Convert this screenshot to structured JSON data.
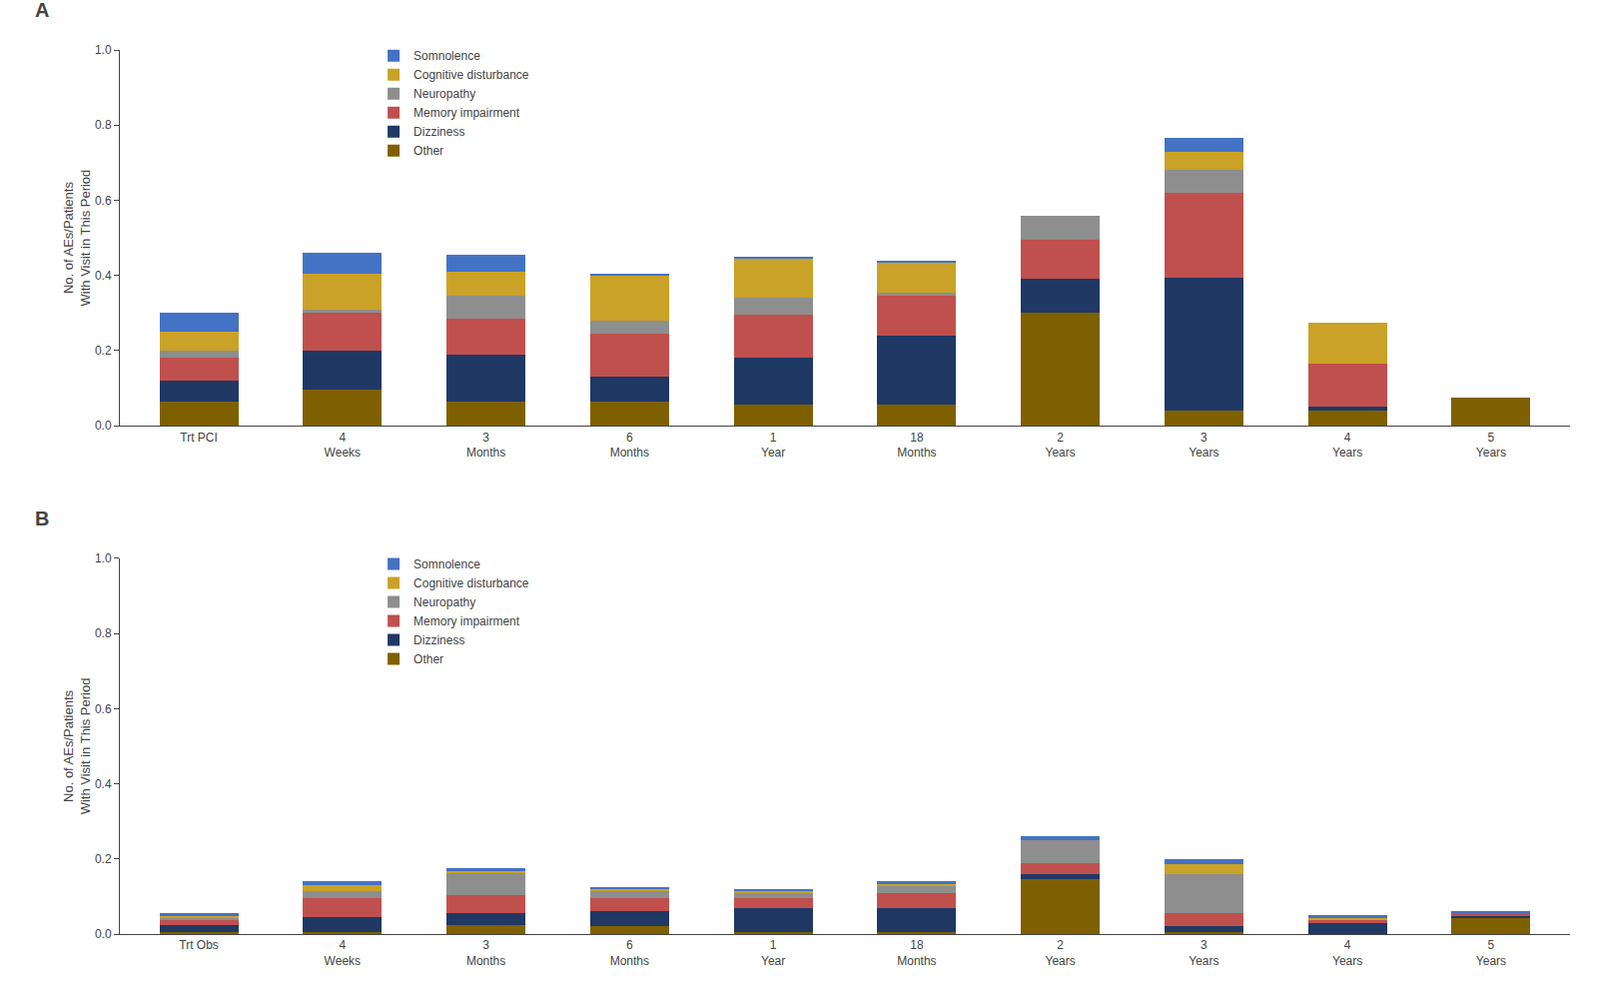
{
  "chart_data": [
    {
      "type": "bar",
      "title": "A",
      "stacked": true,
      "grid": false,
      "legend": "upper left",
      "categories": [
        "Trt PCI",
        "4\nWeeks",
        "3\nMonths",
        "6\nMonths",
        "1\nYear",
        "18\nMonths",
        "2\nYears",
        "3\nYears",
        "4\nYears",
        "5\nYears"
      ],
      "series": [
        {
          "name": "Other",
          "color": "#7F6000",
          "values": [
            0.065,
            0.095,
            0.065,
            0.065,
            0.055,
            0.055,
            0.3,
            0.04,
            0.04,
            0.075
          ]
        },
        {
          "name": "Dizziness",
          "color": "#1F3864",
          "values": [
            0.055,
            0.105,
            0.125,
            0.065,
            0.125,
            0.185,
            0.09,
            0.355,
            0.01,
            0.0
          ]
        },
        {
          "name": "Memory impairment",
          "color": "#C0504D",
          "values": [
            0.06,
            0.1,
            0.095,
            0.115,
            0.115,
            0.105,
            0.105,
            0.225,
            0.115,
            0.0
          ]
        },
        {
          "name": "Neuropathy",
          "color": "#8E8E8E",
          "values": [
            0.02,
            0.01,
            0.06,
            0.035,
            0.045,
            0.01,
            0.065,
            0.06,
            0.0,
            0.0
          ]
        },
        {
          "name": "Cognitive disturbance",
          "color": "#C9A227",
          "values": [
            0.05,
            0.095,
            0.065,
            0.12,
            0.105,
            0.08,
            0.0,
            0.05,
            0.11,
            0.0
          ]
        },
        {
          "name": "Somnolence",
          "color": "#4472C4",
          "values": [
            0.05,
            0.055,
            0.045,
            0.005,
            0.005,
            0.005,
            0.0,
            0.035,
            0.0,
            0.0
          ]
        }
      ],
      "ylabel": "No. of AEs/Patients\nWith Visit in This Period",
      "ylim": [
        0,
        1.0
      ],
      "yticks": [
        {
          "value": 0.0,
          "label": "0.0"
        },
        0.2,
        0.4,
        0.6,
        0.8,
        {
          "value": 1.0,
          "label": "1.0"
        }
      ]
    },
    {
      "type": "bar",
      "title": "B",
      "stacked": true,
      "grid": false,
      "legend": "upper left",
      "categories": [
        "Trt Obs",
        "4\nWeeks",
        "3\nMonths",
        "6\nMonths",
        "1\nYear",
        "18\nMonths",
        "2\nYears",
        "3\nYears",
        "4\nYears",
        "5\nYears"
      ],
      "series": [
        {
          "name": "Other",
          "color": "#7F6000",
          "values": [
            0.005,
            0.005,
            0.025,
            0.02,
            0.005,
            0.005,
            0.145,
            0.005,
            0.0,
            0.045
          ]
        },
        {
          "name": "Dizziness",
          "color": "#1F3864",
          "values": [
            0.02,
            0.04,
            0.03,
            0.04,
            0.065,
            0.065,
            0.015,
            0.015,
            0.03,
            0.005
          ]
        },
        {
          "name": "Memory impairment",
          "color": "#C0504D",
          "values": [
            0.015,
            0.05,
            0.05,
            0.035,
            0.025,
            0.04,
            0.03,
            0.035,
            0.01,
            0.005
          ]
        },
        {
          "name": "Neuropathy",
          "color": "#8E8E8E",
          "values": [
            0.005,
            0.02,
            0.06,
            0.02,
            0.015,
            0.02,
            0.06,
            0.105,
            0.0,
            0.0
          ]
        },
        {
          "name": "Cognitive disturbance",
          "color": "#C9A227",
          "values": [
            0.005,
            0.015,
            0.005,
            0.005,
            0.005,
            0.005,
            0.0,
            0.025,
            0.005,
            0.0
          ]
        },
        {
          "name": "Somnolence",
          "color": "#4472C4",
          "values": [
            0.005,
            0.01,
            0.005,
            0.005,
            0.005,
            0.005,
            0.01,
            0.015,
            0.005,
            0.005
          ]
        }
      ],
      "ylabel": "No. of AEs/Patients\nWith Visit in This Period",
      "ylim": [
        0,
        1.0
      ],
      "yticks": [
        {
          "value": 0.0,
          "label": "0.0"
        },
        0.2,
        0.4,
        0.6,
        0.8,
        {
          "value": 1.0,
          "label": "1.0"
        }
      ]
    }
  ]
}
